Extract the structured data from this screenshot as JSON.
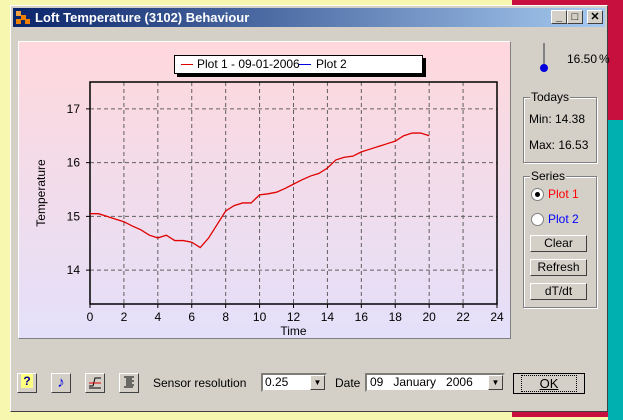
{
  "window": {
    "title": "Loft Temperature (3102) Behaviour",
    "minimize": "_",
    "maximize": "□",
    "close": "✕"
  },
  "legend": {
    "plot1": "Plot 1 - 09-01-2006",
    "plot2": "Plot 2",
    "plot1_color": "#e00000",
    "plot2_color": "#0000e0"
  },
  "thermometer": {
    "value": "16.50",
    "unit": "%"
  },
  "todays": {
    "label": "Todays",
    "min": "Min: 14.38",
    "max": "Max: 16.53"
  },
  "series": {
    "label": "Series",
    "plot1": "Plot 1",
    "plot2": "Plot 2",
    "selected": "Plot 1",
    "clear": "Clear",
    "refresh": "Refresh",
    "dtdt": "dT/dt"
  },
  "toolbar": {
    "help_icon": "help-icon",
    "music_icon": "music-note-icon",
    "graph_icon": "graph-icon",
    "list_icon": "list-icon"
  },
  "sensor": {
    "label": "Sensor resolution",
    "value": "0.25"
  },
  "date": {
    "label": "Date",
    "value": "09   January   2006"
  },
  "ok": "OK",
  "chart_data": {
    "type": "line",
    "xlabel": "Time",
    "ylabel": "Temperature",
    "xlim": [
      0,
      24
    ],
    "ylim": [
      13.37,
      17.5
    ],
    "xticks": [
      "0",
      "2",
      "4",
      "6",
      "8",
      "10",
      "12",
      "14",
      "16",
      "18",
      "20",
      "22",
      "24"
    ],
    "yticks": [
      "14",
      "15",
      "16",
      "17"
    ],
    "grid": true,
    "series": [
      {
        "name": "Plot 1 - 09-01-2006",
        "color": "#e00000",
        "x": [
          0,
          0.5,
          1,
          1.5,
          2,
          2.5,
          3,
          3.5,
          4,
          4.5,
          5,
          5.5,
          6,
          6.5,
          7,
          7.5,
          8,
          8.5,
          9,
          9.5,
          10,
          10.5,
          11,
          11.5,
          12,
          12.5,
          13,
          13.5,
          14,
          14.5,
          15,
          15.5,
          16,
          16.5,
          17,
          17.5,
          18,
          18.5,
          19,
          19.5,
          20
        ],
        "y": [
          15.05,
          15.05,
          15.0,
          14.95,
          14.9,
          14.82,
          14.75,
          14.65,
          14.6,
          14.65,
          14.55,
          14.55,
          14.52,
          14.42,
          14.6,
          14.85,
          15.1,
          15.2,
          15.25,
          15.25,
          15.4,
          15.42,
          15.45,
          15.52,
          15.6,
          15.68,
          15.75,
          15.8,
          15.9,
          16.05,
          16.1,
          16.12,
          16.2,
          16.25,
          16.3,
          16.35,
          16.4,
          16.5,
          16.55,
          16.55,
          16.5
        ]
      }
    ]
  }
}
